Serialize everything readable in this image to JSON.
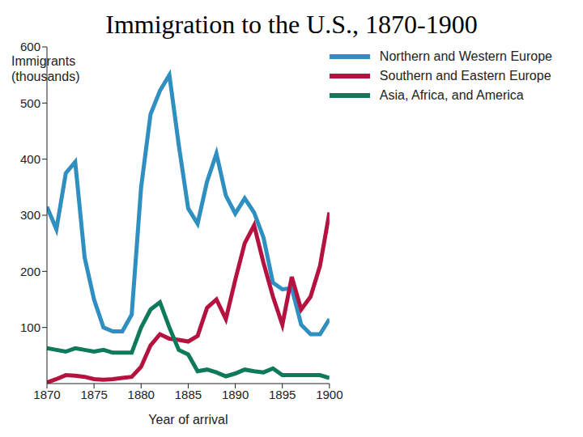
{
  "chart_data": {
    "type": "line",
    "title": "Immigration to the U.S., 1870-1900",
    "ylabel": [
      "Immigrants",
      "(thousands)"
    ],
    "xlabel": "Year of arrival",
    "x": [
      1870,
      1871,
      1872,
      1873,
      1874,
      1875,
      1876,
      1877,
      1878,
      1879,
      1880,
      1881,
      1882,
      1883,
      1884,
      1885,
      1886,
      1887,
      1888,
      1889,
      1890,
      1891,
      1892,
      1893,
      1894,
      1895,
      1896,
      1897,
      1898,
      1899,
      1900
    ],
    "series": [
      {
        "name": "Northern and Western Europe",
        "color": "#2e8fc0",
        "values": [
          315,
          275,
          375,
          395,
          225,
          150,
          100,
          93,
          93,
          123,
          350,
          480,
          522,
          550,
          425,
          312,
          285,
          360,
          410,
          335,
          303,
          330,
          305,
          260,
          180,
          168,
          170,
          105,
          88,
          88,
          115
        ]
      },
      {
        "name": "Southern and Eastern Europe",
        "color": "#b5123f",
        "values": [
          2,
          8,
          15,
          14,
          12,
          8,
          7,
          8,
          10,
          12,
          30,
          68,
          88,
          80,
          78,
          75,
          85,
          135,
          150,
          115,
          185,
          250,
          282,
          215,
          155,
          105,
          190,
          132,
          155,
          210,
          305
        ]
      },
      {
        "name": "Asia, Africa, and America",
        "color": "#0e7a5a",
        "values": [
          63,
          60,
          57,
          63,
          60,
          57,
          60,
          55,
          55,
          55,
          100,
          132,
          145,
          100,
          60,
          52,
          22,
          25,
          20,
          13,
          18,
          25,
          22,
          20,
          27,
          15,
          15,
          15,
          15,
          15,
          10
        ]
      }
    ],
    "xlim": [
      1870,
      1900
    ],
    "xticks": [
      1870,
      1875,
      1880,
      1885,
      1890,
      1895,
      1900
    ],
    "ylim": [
      0,
      600
    ],
    "yticks": [
      100,
      200,
      300,
      400,
      500,
      600
    ],
    "grid": false,
    "legend": "top-right"
  }
}
